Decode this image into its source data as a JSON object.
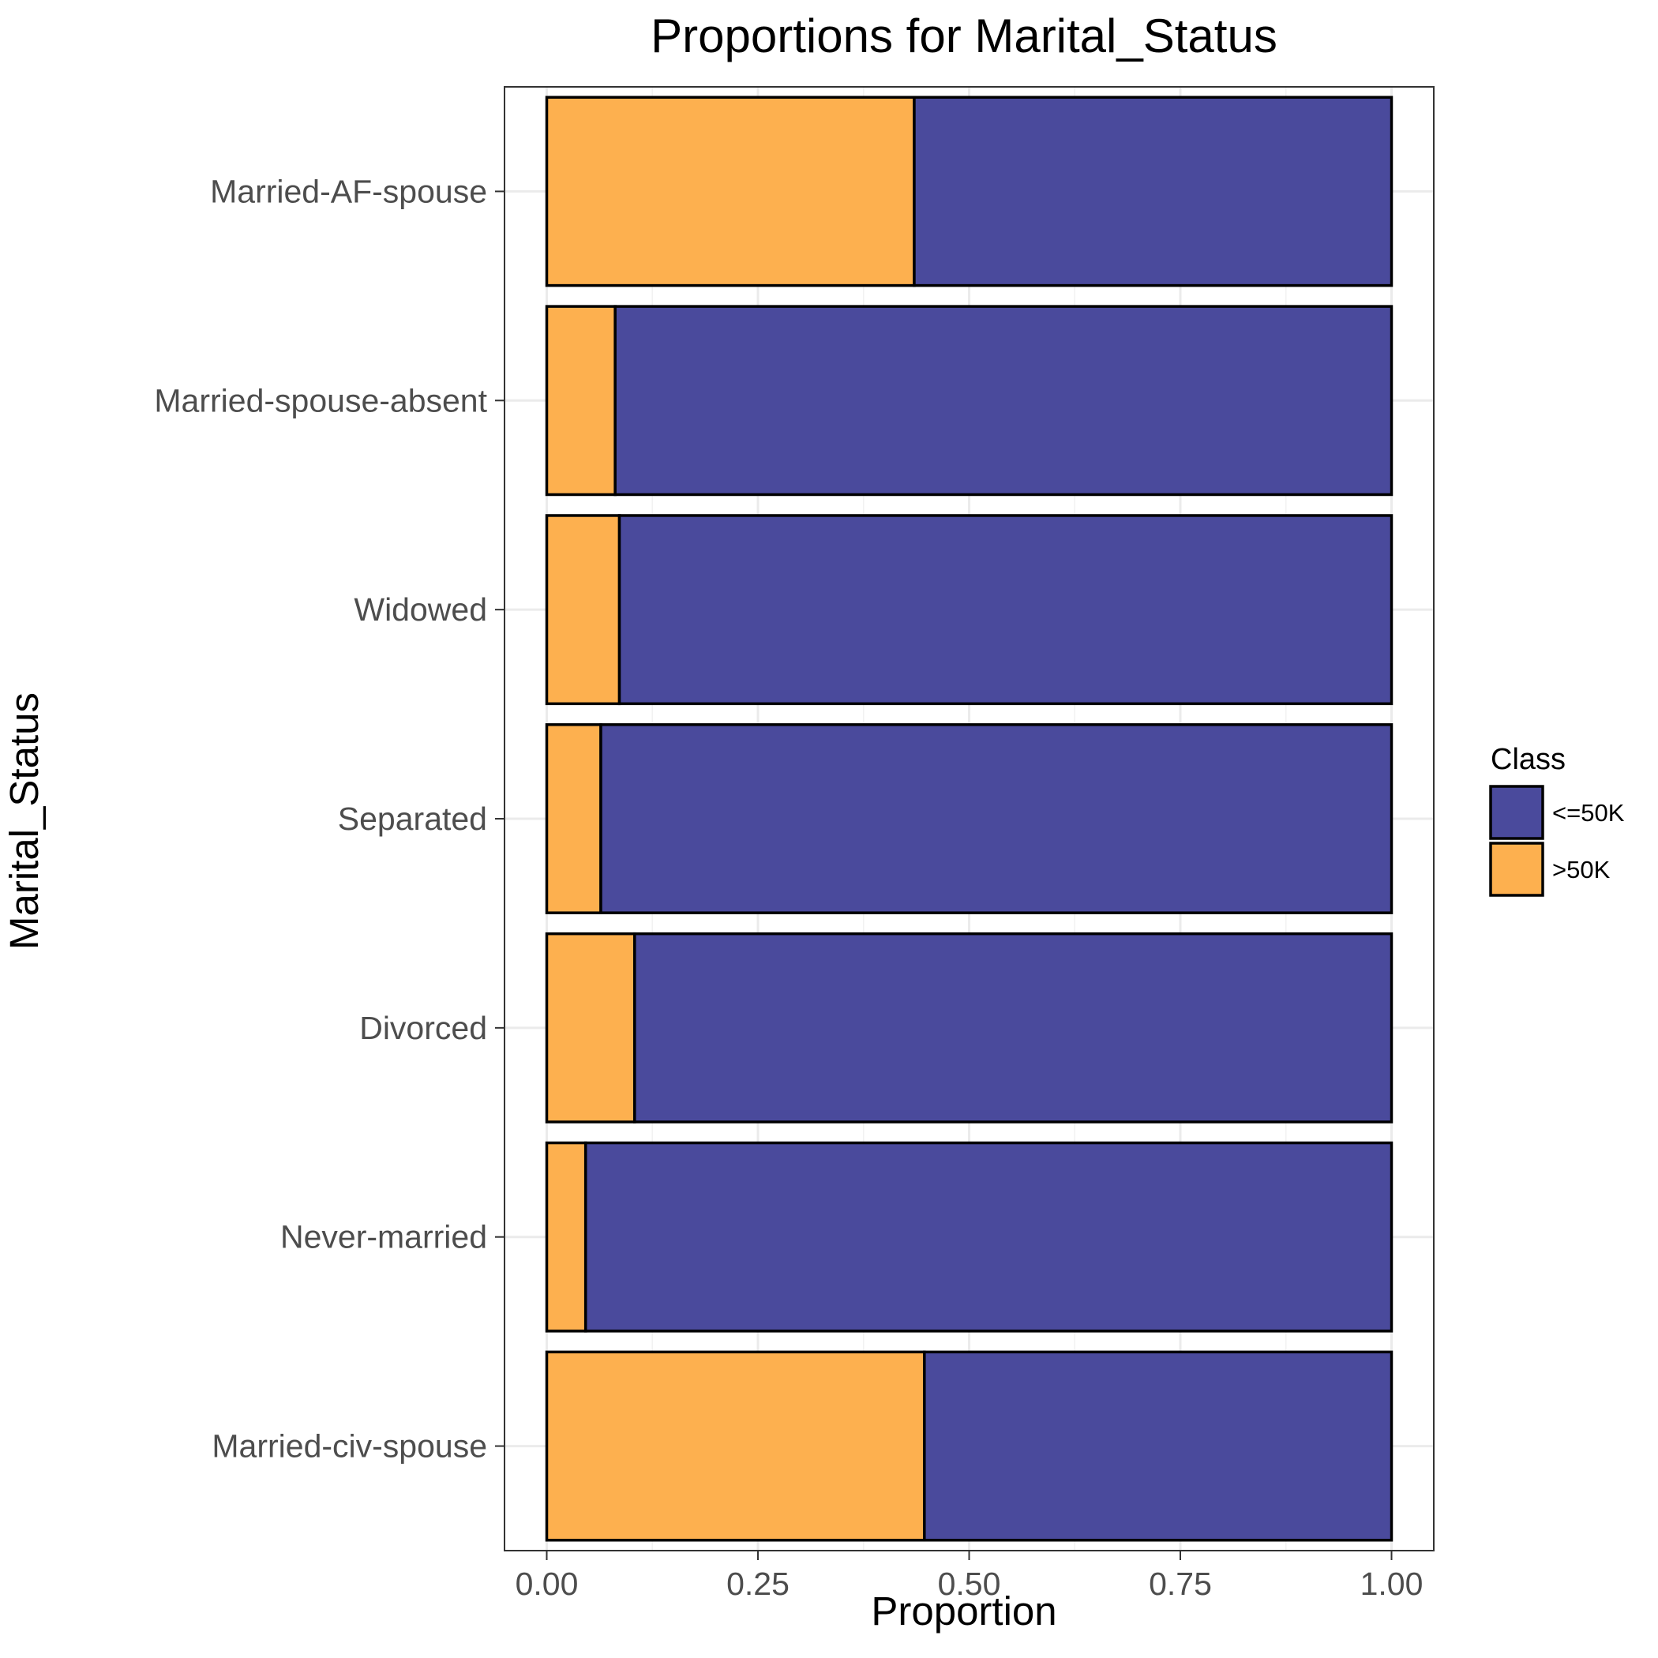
{
  "chart_data": {
    "type": "bar",
    "orientation": "horizontal",
    "stacked": true,
    "title": "Proportions for Marital_Status",
    "xlabel": "Proportion",
    "ylabel": "Marital_Status",
    "xlim": [
      -0.05,
      1.05
    ],
    "xticks": [
      0.0,
      0.25,
      0.5,
      0.75,
      1.0
    ],
    "xtick_labels": [
      "0.00",
      "0.25",
      "0.50",
      "0.75",
      "1.00"
    ],
    "grid": true,
    "legend_position": "right",
    "legend_title": "Class",
    "categories": [
      "Married-AF-spouse",
      "Married-spouse-absent",
      "Widowed",
      "Separated",
      "Divorced",
      "Never-married",
      "Married-civ-spouse"
    ],
    "series": [
      {
        "name": ">50K",
        "color": "#FDB04F",
        "values": [
          0.435,
          0.081,
          0.086,
          0.064,
          0.104,
          0.046,
          0.447
        ]
      },
      {
        "name": "<=50K",
        "color": "#4A4A9C",
        "values": [
          0.565,
          0.919,
          0.914,
          0.936,
          0.896,
          0.954,
          0.553
        ]
      }
    ],
    "legend_order": [
      "<=50K",
      ">50K"
    ]
  }
}
